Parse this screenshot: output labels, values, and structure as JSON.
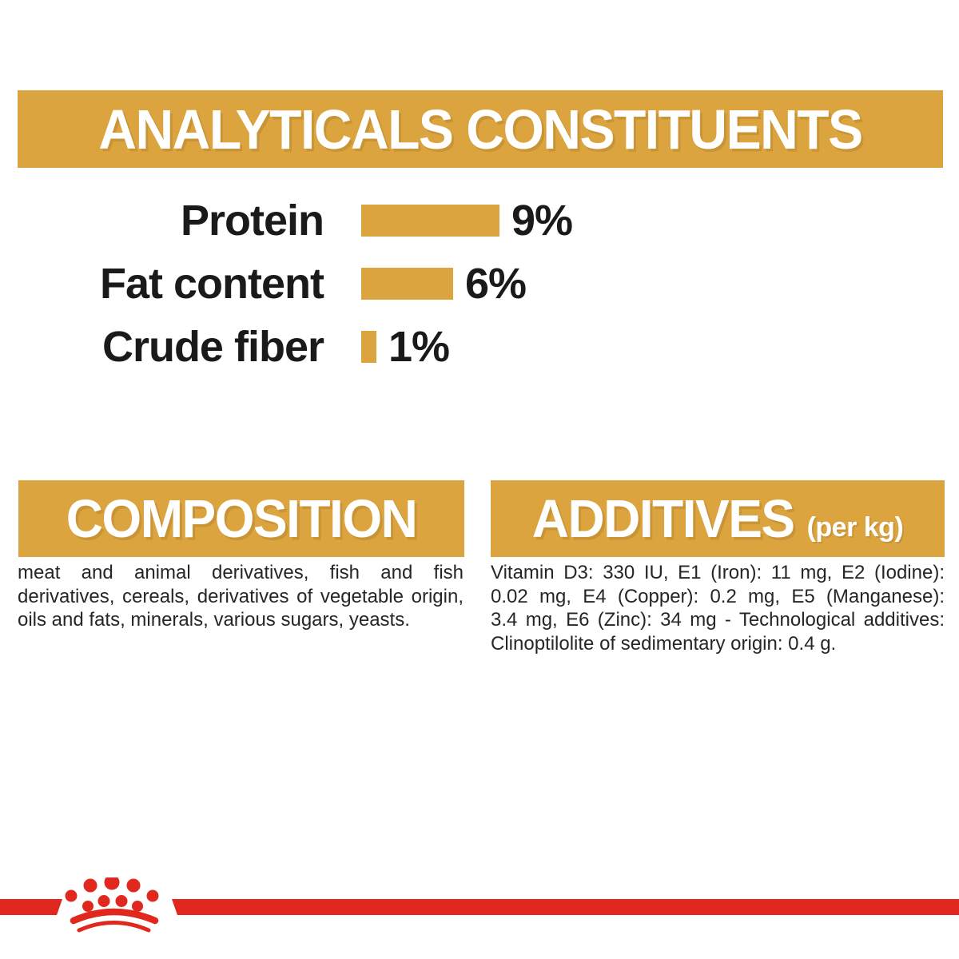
{
  "colors": {
    "gold": "#DCA43F",
    "red": "#E0281E",
    "banner_text": "#FFFFFF",
    "label_text": "#1A1A1A",
    "body_text": "#262626",
    "background": "#FFFFFF"
  },
  "analyticals": {
    "title": "ANALYTICALS CONSTITUENTS"
  },
  "chart_data": {
    "type": "bar",
    "orientation": "horizontal",
    "title": "ANALYTICALS CONSTITUENTS",
    "categories": [
      "Protein",
      "Fat content",
      "Crude fiber"
    ],
    "values": [
      9,
      6,
      1
    ],
    "unit": "%",
    "value_labels": [
      "9%",
      "6%",
      "1%"
    ],
    "bar_color": "#DCA43F",
    "xlim": [
      0,
      9
    ],
    "grid": false,
    "legend": false
  },
  "composition": {
    "title": "COMPOSITION",
    "lines": [
      "meat and animal derivatives, fish and fish",
      "derivatives, cereals, derivatives of vegetable origin,",
      "oils and fats, minerals, various sugars, yeasts."
    ]
  },
  "additives": {
    "title": "ADDITIVES",
    "title_note": "(per kg)",
    "lines": [
      "Vitamin D3: 330 IU, E1 (Iron): 11 mg, E2 (Iodine):",
      "0.02 mg, E4 (Copper): 0.2 mg, E5 (Manganese):",
      "3.4 mg, E6 (Zinc): 34 mg - Technological additives:",
      "Clinoptilolite of sedimentary origin: 0.4 g."
    ]
  },
  "footer": {
    "logo_name": "royal-canin-crown-logo"
  }
}
